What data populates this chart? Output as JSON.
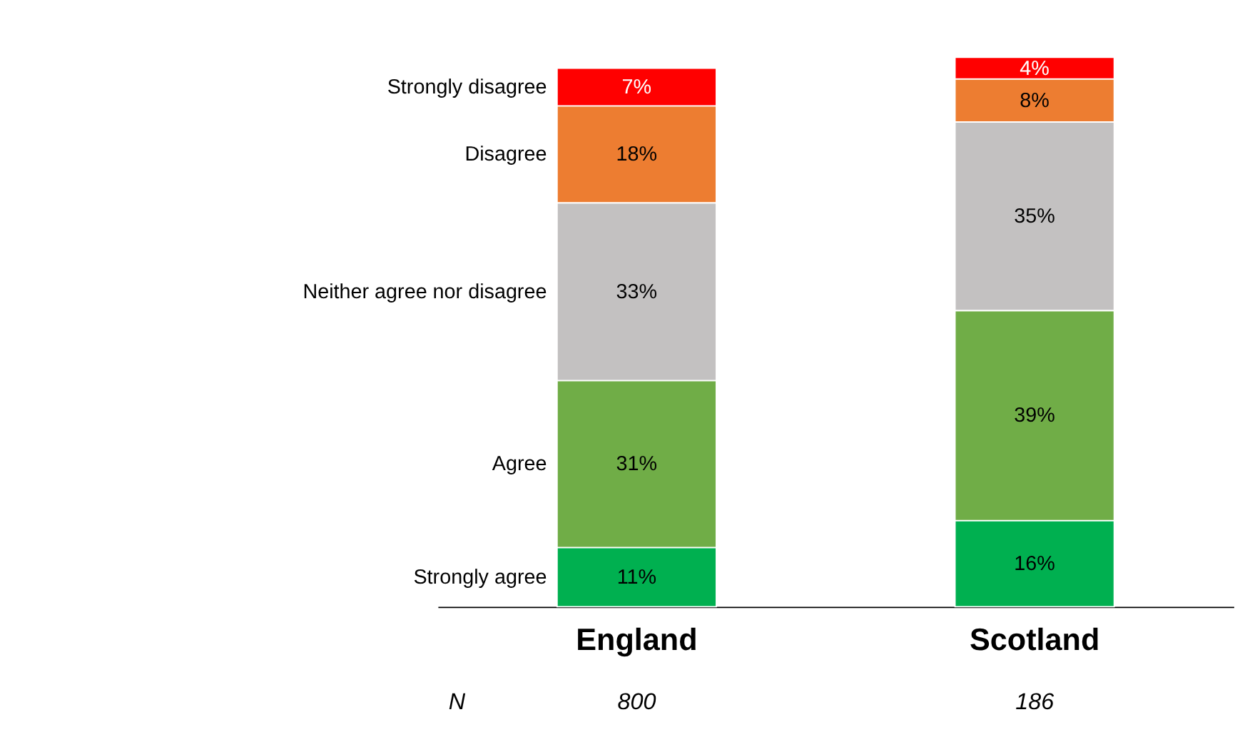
{
  "chart_data": {
    "type": "bar",
    "stacked": true,
    "categories": [
      "England",
      "Scotland"
    ],
    "series": [
      {
        "name": "Strongly agree",
        "color": "#00b050",
        "values": [
          11,
          16
        ],
        "value_labels": [
          "11%",
          "16%"
        ]
      },
      {
        "name": "Agree",
        "color": "#70ad47",
        "values": [
          31,
          39
        ],
        "value_labels": [
          "31%",
          "39%"
        ]
      },
      {
        "name": "Neither agree nor disagree",
        "color": "#c3c1c1",
        "values": [
          33,
          35
        ],
        "value_labels": [
          "33%",
          "35%"
        ]
      },
      {
        "name": "Disagree",
        "color": "#ed7d31",
        "values": [
          18,
          8
        ],
        "value_labels": [
          "18%",
          "8%"
        ]
      },
      {
        "name": "Strongly disagree",
        "color": "#ff0000",
        "values": [
          7,
          4
        ],
        "value_labels": [
          "7%",
          "4%"
        ]
      }
    ],
    "annotations": [
      "N",
      "800",
      "186"
    ]
  }
}
